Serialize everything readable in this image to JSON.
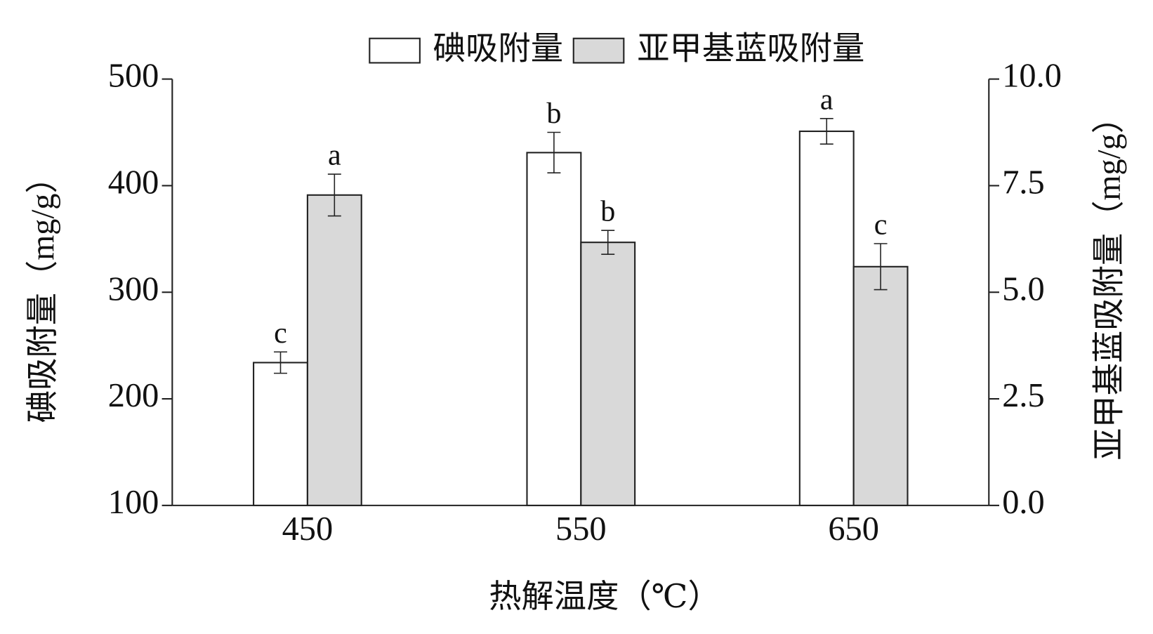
{
  "chart_data": {
    "type": "bar",
    "categories": [
      "450",
      "550",
      "650"
    ],
    "xlabel": "热解温度（℃）",
    "ylabel": "碘吸附量（mg/g）",
    "y2label": "亚甲基蓝吸附量（mg/g）",
    "ylim": [
      100,
      500
    ],
    "yticks": [
      100,
      200,
      300,
      400,
      500
    ],
    "y2lim": [
      0,
      10
    ],
    "y2ticks": [
      {
        "value": 0,
        "label": "0.0"
      },
      {
        "value": 2.5,
        "label": "2.5"
      },
      {
        "value": 5,
        "label": "5.0"
      },
      {
        "value": 7.5,
        "label": "7.5"
      },
      {
        "value": 10,
        "label": "10.0"
      }
    ],
    "grid": false,
    "legend": "top",
    "series": [
      {
        "name": "碘吸附量",
        "color": "#ffffff",
        "values": [
          234,
          431,
          451
        ],
        "errors": [
          10,
          19,
          12
        ],
        "labels": [
          "c",
          "b",
          "a"
        ]
      },
      {
        "name": "亚甲基蓝吸附量",
        "color": "#d9d9d9",
        "axis": "y2",
        "values": [
          7.28,
          6.17,
          5.6
        ],
        "errors": [
          0.49,
          0.28,
          0.54
        ],
        "labels": [
          "a",
          "b",
          "c"
        ]
      }
    ]
  }
}
